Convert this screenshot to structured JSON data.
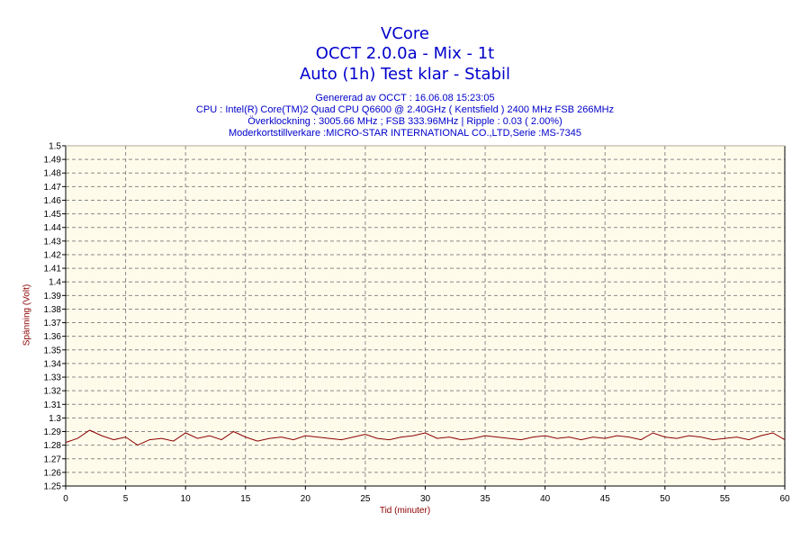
{
  "header": {
    "title_line1": "VCore",
    "title_line2": "OCCT 2.0.0a - Mix - 1t",
    "title_line3": "Auto (1h) Test klar - Stabil",
    "info_line1": "Genererad av OCCT : 16.06.08 15:23:05",
    "info_line2": "CPU : Intel(R) Core(TM)2 Quad CPU Q6600 @ 2.40GHz ( Kentsfield ) 2400 MHz FSB 266MHz",
    "info_line3": "Överklockning : 3005.66 MHz ; FSB 333.96MHz | Ripple : 0.03 ( 2.00%)",
    "info_line4": "Moderkortstillverkare :MICRO-STAR INTERNATIONAL CO.,LTD,Serie :MS-7345"
  },
  "colors": {
    "plot_background": "#fffbeb",
    "line": "#8b0000",
    "grid": "#8a8a8a",
    "text_blue": "#0000cc"
  },
  "chart_data": {
    "type": "line",
    "xlabel": "Tid (minuter)",
    "ylabel": "Spänning (Volt)",
    "xlim": [
      0,
      60
    ],
    "ylim": [
      1.25,
      1.5
    ],
    "x_ticks": [
      "0",
      "5",
      "10",
      "15",
      "20",
      "25",
      "30",
      "35",
      "40",
      "45",
      "50",
      "55",
      "60"
    ],
    "y_ticks": [
      "1.25",
      "1.26",
      "1.27",
      "1.28",
      "1.29",
      "1.3",
      "1.31",
      "1.32",
      "1.33",
      "1.34",
      "1.35",
      "1.36",
      "1.37",
      "1.38",
      "1.39",
      "1.4",
      "1.41",
      "1.42",
      "1.43",
      "1.44",
      "1.45",
      "1.46",
      "1.47",
      "1.48",
      "1.49",
      "1.5"
    ],
    "grid": true,
    "series": [
      {
        "x": [
          0,
          1,
          2,
          3,
          4,
          5,
          6,
          7,
          8,
          9,
          10,
          11,
          12,
          13,
          14,
          15,
          16,
          17,
          18,
          19,
          20,
          21,
          22,
          23,
          24,
          25,
          26,
          27,
          28,
          29,
          30,
          31,
          32,
          33,
          34,
          35,
          36,
          37,
          38,
          39,
          40,
          41,
          42,
          43,
          44,
          45,
          46,
          47,
          48,
          49,
          50,
          51,
          52,
          53,
          54,
          55,
          56,
          57,
          58,
          59,
          60
        ],
        "values": [
          1.282,
          1.285,
          1.291,
          1.287,
          1.284,
          1.286,
          1.28,
          1.284,
          1.285,
          1.283,
          1.289,
          1.285,
          1.287,
          1.284,
          1.29,
          1.286,
          1.283,
          1.285,
          1.286,
          1.284,
          1.287,
          1.286,
          1.285,
          1.284,
          1.286,
          1.288,
          1.285,
          1.284,
          1.286,
          1.287,
          1.289,
          1.285,
          1.286,
          1.284,
          1.285,
          1.287,
          1.286,
          1.285,
          1.284,
          1.286,
          1.287,
          1.285,
          1.286,
          1.284,
          1.286,
          1.285,
          1.287,
          1.286,
          1.284,
          1.289,
          1.286,
          1.285,
          1.287,
          1.286,
          1.284,
          1.285,
          1.286,
          1.284,
          1.287,
          1.289,
          1.284
        ]
      }
    ]
  }
}
